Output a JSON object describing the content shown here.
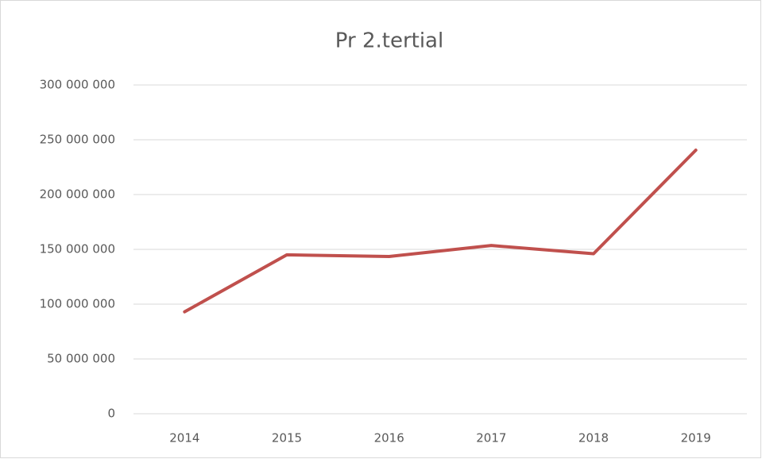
{
  "chart_data": {
    "type": "line",
    "title": "Pr 2.tertial",
    "categories": [
      "2014",
      "2015",
      "2016",
      "2017",
      "2018",
      "2019"
    ],
    "series": [
      {
        "name": "Pr 2.tertial",
        "color": "#c0504d",
        "values": [
          93000000,
          145000000,
          143500000,
          153500000,
          146000000,
          240500000
        ]
      }
    ],
    "ylim": [
      0,
      300000000
    ],
    "yticks": [
      {
        "value": 0,
        "label": "0"
      },
      {
        "value": 50000000,
        "label": "50 000 000"
      },
      {
        "value": 100000000,
        "label": "100 000 000"
      },
      {
        "value": 150000000,
        "label": "150 000 000"
      },
      {
        "value": 200000000,
        "label": "200 000 000"
      },
      {
        "value": 250000000,
        "label": "250 000 000"
      },
      {
        "value": 300000000,
        "label": "300 000 000"
      }
    ],
    "grid": true
  }
}
